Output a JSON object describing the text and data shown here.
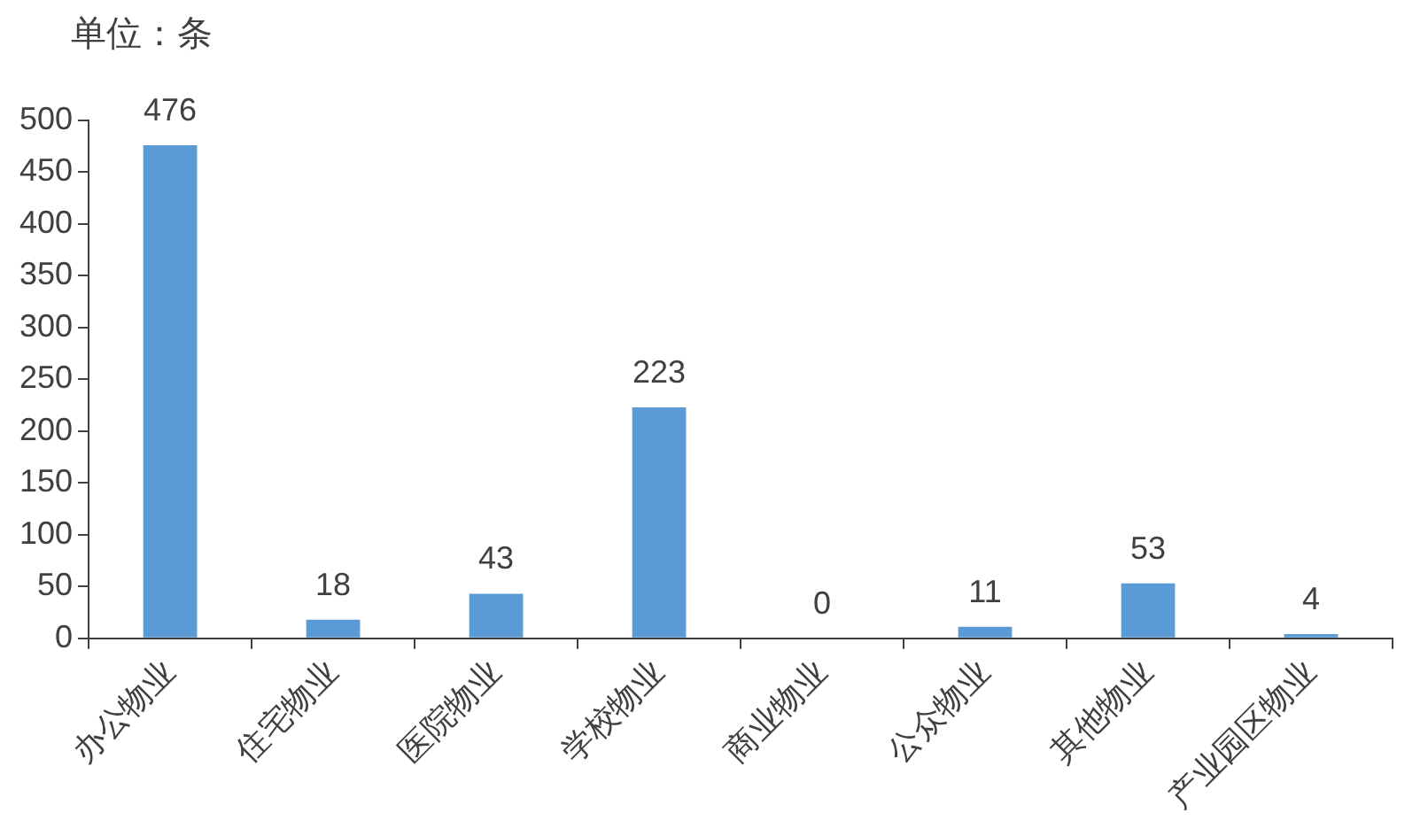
{
  "chart_data": {
    "type": "bar",
    "ylabel": "单位：条",
    "categories": [
      "办公物业",
      "住宅物业",
      "医院物业",
      "学校物业",
      "商业物业",
      "公众物业",
      "其他物业",
      "产业园区物业"
    ],
    "values": [
      476,
      18,
      43,
      223,
      0,
      11,
      53,
      4
    ],
    "color": "#5b9bd5",
    "ylim": [
      0,
      500
    ],
    "yticks": [
      0,
      50,
      100,
      150,
      200,
      250,
      300,
      350,
      400,
      450,
      500
    ],
    "grid": false,
    "data_labels": true,
    "legend": false
  }
}
